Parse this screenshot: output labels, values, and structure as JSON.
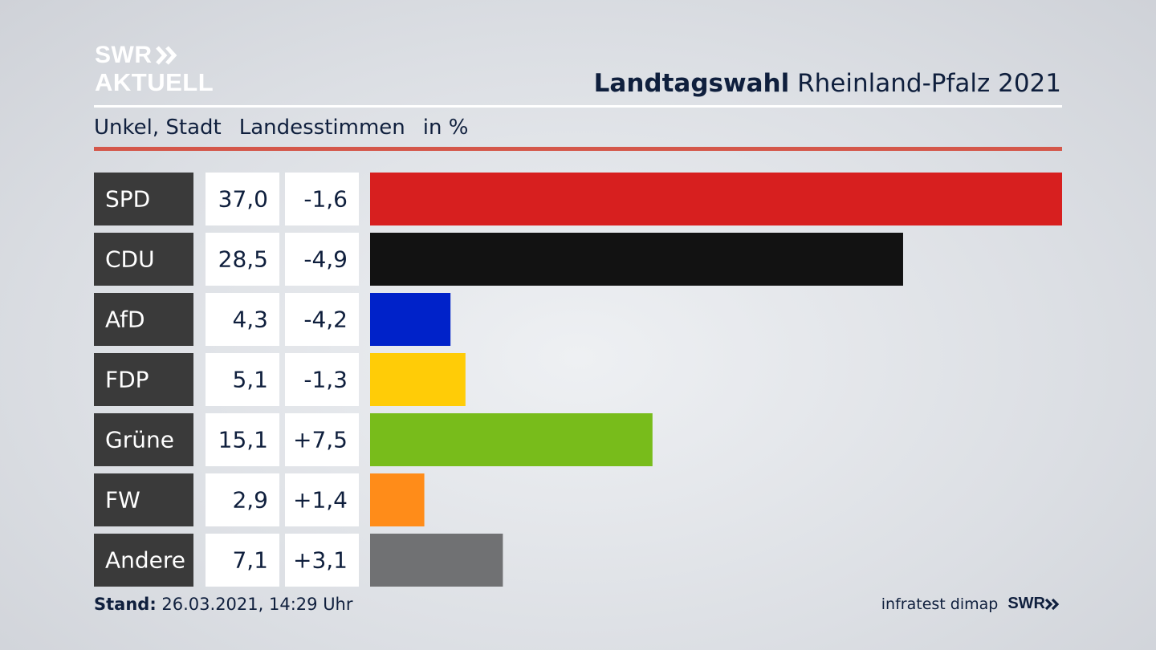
{
  "header": {
    "logo_line1": "SWR",
    "logo_line2": "AKTUELL",
    "title_bold": "Landtagswahl",
    "title_rest": "Rheinland-Pfalz 2021"
  },
  "subtitle": {
    "place": "Unkel, Stadt",
    "vote_type": "Landesstimmen",
    "unit": "in %"
  },
  "footer": {
    "stand_label": "Stand:",
    "stand_value": "26.03.2021, 14:29 Uhr",
    "source": "infratest dimap",
    "brand": "SWR"
  },
  "colors": {
    "label_bg": "#3a3a3a",
    "value_bg": "#ffffff",
    "accent_rule": "#d4574a"
  },
  "chart_data": {
    "type": "bar",
    "orientation": "horizontal",
    "categories": [
      "SPD",
      "CDU",
      "AfD",
      "FDP",
      "Grüne",
      "FW",
      "Andere"
    ],
    "values": [
      37.0,
      28.5,
      4.3,
      5.1,
      15.1,
      2.9,
      7.1
    ],
    "value_labels": [
      "37,0",
      "28,5",
      "4,3",
      "5,1",
      "15,1",
      "2,9",
      "7,1"
    ],
    "change_labels": [
      "-1,6",
      "-4,9",
      "-4,2",
      "-1,3",
      "+7,5",
      "+1,4",
      "+3,1"
    ],
    "changes": [
      -1.6,
      -4.9,
      -4.2,
      -1.3,
      7.5,
      1.4,
      3.1
    ],
    "colors": [
      "#d71f1f",
      "#121212",
      "#0022c9",
      "#ffcc07",
      "#78bc1b",
      "#ff8c19",
      "#707173"
    ],
    "xlim": [
      0,
      37.0
    ],
    "grid": false,
    "legend": "none"
  }
}
